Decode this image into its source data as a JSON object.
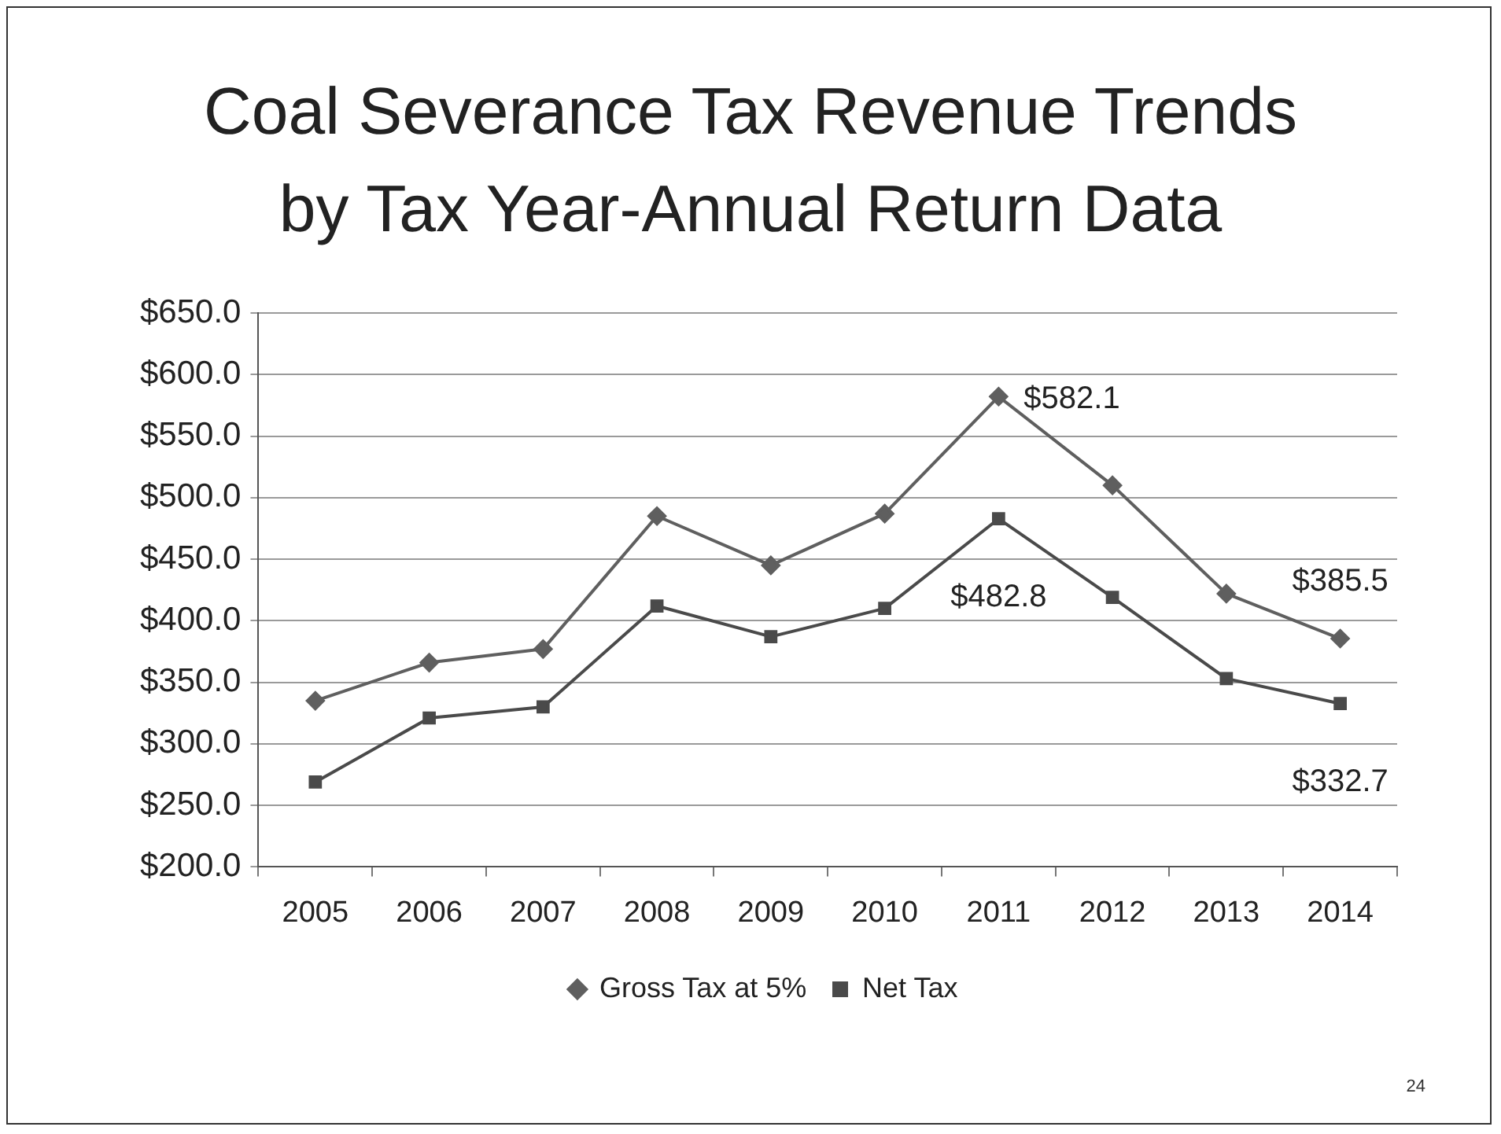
{
  "chart_data": {
    "type": "line",
    "title": "Coal Severance Tax Revenue Trends by Tax Year-Annual Return Data",
    "categories": [
      "2005",
      "2006",
      "2007",
      "2008",
      "2009",
      "2010",
      "2011",
      "2012",
      "2013",
      "2014"
    ],
    "series": [
      {
        "name": "Gross Tax at 5%",
        "color": "#5f5f5f",
        "marker": "diamond",
        "values": [
          335,
          366,
          377,
          485,
          445,
          487,
          582.1,
          510,
          422,
          385.5
        ],
        "value_labels": [
          null,
          null,
          null,
          null,
          null,
          null,
          "$582.1",
          null,
          null,
          "$385.5"
        ]
      },
      {
        "name": "Net Tax",
        "color": "#4a4a4a",
        "marker": "square",
        "values": [
          269,
          321,
          330,
          412,
          387,
          410,
          482.8,
          419,
          353,
          332.7
        ],
        "value_labels": [
          null,
          null,
          null,
          null,
          null,
          null,
          "$482.8",
          null,
          null,
          "$332.7"
        ]
      }
    ],
    "ylim": [
      200,
      650
    ],
    "yticks": [
      {
        "value": 200,
        "label": "$200.0"
      },
      {
        "value": 250,
        "label": "$250.0"
      },
      {
        "value": 300,
        "label": "$300.0"
      },
      {
        "value": 350,
        "label": "$350.0"
      },
      {
        "value": 400,
        "label": "$400.0"
      },
      {
        "value": 450,
        "label": "$450.0"
      },
      {
        "value": 500,
        "label": "$500.0"
      },
      {
        "value": 550,
        "label": "$550.0"
      },
      {
        "value": 600,
        "label": "$600.0"
      },
      {
        "value": 650,
        "label": "$650.0"
      }
    ],
    "grid": "y",
    "legend": "bottom",
    "annotations": [
      "24"
    ]
  }
}
